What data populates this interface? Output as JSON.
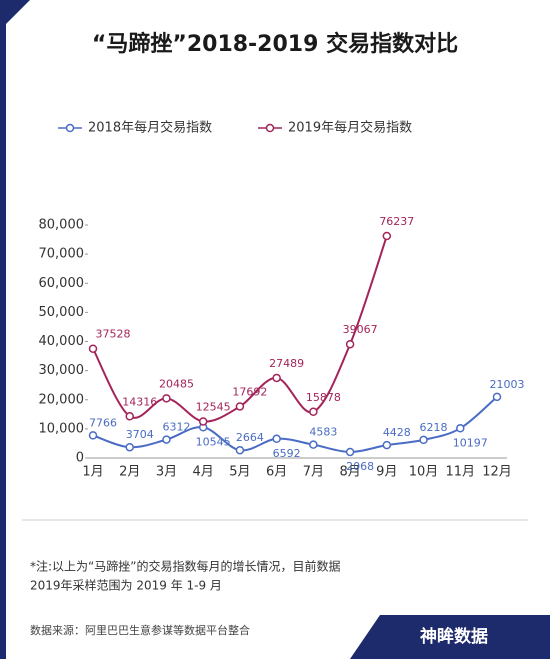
{
  "chart_data": {
    "type": "line",
    "title": "“马蹄挫”2018-2019 交易指数对比",
    "categories": [
      "1月",
      "2月",
      "3月",
      "4月",
      "5月",
      "6月",
      "7月",
      "8月",
      "9月",
      "10月",
      "11月",
      "12月"
    ],
    "series": [
      {
        "name": "2018年每月交易指数",
        "color": "#4a6cc4",
        "values": [
          7766,
          3704,
          6312,
          10545,
          2664,
          6592,
          4583,
          2068,
          4428,
          6218,
          10197,
          21003
        ]
      },
      {
        "name": "2019年每月交易指数",
        "color": "#a3245a",
        "values": [
          37528,
          14316,
          20485,
          12545,
          17692,
          27489,
          15878,
          39067,
          76237,
          null,
          null,
          null
        ]
      }
    ],
    "ylim": [
      0,
      80000
    ],
    "yticks": [
      0,
      {
        "value": 10000,
        "label": "10,000"
      },
      {
        "value": 20000,
        "label": "20,000"
      },
      {
        "value": 30000,
        "label": "30,000"
      },
      {
        "value": 40000,
        "label": "40,000"
      },
      {
        "value": 50000,
        "label": "50,000"
      },
      {
        "value": 60000,
        "label": "60,000"
      },
      {
        "value": 70000,
        "label": "70,000"
      },
      {
        "value": 80000,
        "label": "80,000"
      }
    ],
    "legend": "top-left",
    "notes": [
      "*注:以上为“马蹄挫”的交易指数每月的增长情况，目前数据",
      "2019年采样范围为 2019 年 1-9 月"
    ],
    "source": "数据来源：阿里巴巴生意参谋等数据平台整合",
    "brand": "神眸数据"
  }
}
